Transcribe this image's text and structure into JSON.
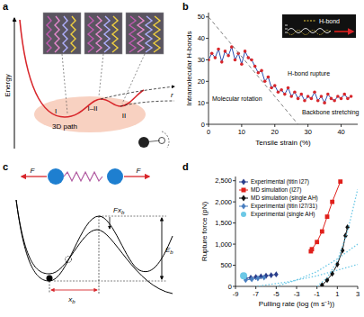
{
  "panels": [
    "a",
    "b",
    "c",
    "d"
  ],
  "panel_a": {
    "axis_label": "Energy",
    "states": [
      "I",
      "I–II",
      "II"
    ],
    "path_label": "3D path",
    "coordinate": "r"
  },
  "panel_c": {
    "forces": [
      "F",
      "F"
    ],
    "barrier_shift": {
      "text": "Fx",
      "sub": "b"
    },
    "distance": {
      "text": "x",
      "sub": "b"
    },
    "barrier": {
      "text": "E",
      "sub": "b"
    }
  },
  "chart_data": [
    {
      "type": "line",
      "x_label": "Tensile strain (%)",
      "y_label": "Intramolecular H-bonds",
      "xlim": [
        0,
        45
      ],
      "ylim": [
        0,
        52
      ],
      "xticks": [
        0,
        10,
        20,
        30,
        40
      ],
      "yticks": [
        0,
        10,
        20,
        30,
        40,
        50
      ],
      "grid": false,
      "annotations": [
        "Molecular rotation",
        "H-bond rupture",
        "Backbone stretching"
      ],
      "inset_label": "H-bond",
      "series": [
        {
          "color": "#d8262b",
          "marker": "circle",
          "x": [
            0,
            1,
            2,
            3,
            4,
            5,
            6,
            7,
            8,
            9,
            10,
            11,
            12,
            13,
            14,
            15,
            16,
            17,
            18,
            19,
            20,
            21,
            22,
            23,
            24,
            25,
            26,
            27,
            28,
            29,
            30,
            31,
            32,
            33,
            34,
            35,
            36,
            37,
            38,
            39,
            40,
            41,
            42,
            43
          ],
          "values": [
            30,
            33,
            31,
            35,
            29,
            34,
            32,
            36,
            30,
            33,
            28,
            34,
            31,
            30,
            27,
            24,
            25,
            20,
            22,
            17,
            18,
            15,
            16,
            14,
            17,
            13,
            15,
            12,
            14,
            11,
            13,
            12,
            15,
            11,
            13,
            10,
            14,
            12,
            11,
            13,
            12,
            14,
            12,
            13
          ]
        },
        {
          "type": "line",
          "color": "#808080",
          "line_style": "dashed",
          "x": [
            0,
            27
          ],
          "values": [
            50,
            0
          ]
        }
      ]
    },
    {
      "type": "line",
      "x_label": "Pulling rate (log (m s⁻¹))",
      "y_label": "Rupture force (pN)",
      "xlim": [
        -9,
        3
      ],
      "ylim": [
        0,
        2600
      ],
      "xticks": [
        -9,
        -7,
        -5,
        -3,
        -1,
        1,
        3
      ],
      "yticks": [
        0,
        500,
        {
          "value": 1000,
          "label": "1,000"
        },
        {
          "value": 1500,
          "label": "1,500"
        },
        {
          "value": 2000,
          "label": "2,000"
        },
        {
          "value": 2500,
          "label": "2,500"
        }
      ],
      "grid": false,
      "legend": "upper left",
      "series": [
        {
          "name": "Experimental (titin I27)",
          "color": "#2b3f8c",
          "marker": "diamond",
          "x": [
            -8,
            -7.5,
            -7,
            -6.5,
            -6,
            -5.5,
            -5
          ],
          "values": [
            190,
            205,
            220,
            235,
            250,
            265,
            285
          ]
        },
        {
          "name": "MD simulation (I27)",
          "color": "#e0201b",
          "marker": "square",
          "x": [
            -1.6,
            -1.5,
            -1,
            -0.5,
            0,
            0.5,
            1.3
          ],
          "values": [
            830,
            880,
            1050,
            1300,
            1650,
            2000,
            2480
          ]
        },
        {
          "name": "MD simulation (single AH)",
          "color": "#111111",
          "marker": "diamond",
          "x": [
            -0.5,
            0,
            0.5,
            1,
            1.5,
            1.8,
            2
          ],
          "values": [
            30,
            150,
            300,
            520,
            850,
            1200,
            1400
          ]
        },
        {
          "name": "Experimental (titin I27/31)",
          "color": "#4a7fc0",
          "marker": "diamond",
          "x": [
            -8,
            -7.4,
            -6.8,
            -6.2
          ],
          "values": [
            150,
            170,
            190,
            210
          ]
        },
        {
          "name": "Experimental (single AH)",
          "type": "scatter",
          "color": "#6cc8e6",
          "marker": "circle",
          "x": [
            -8.2
          ],
          "values": [
            250
          ]
        },
        {
          "type": "line",
          "color": "#6cc8e6",
          "line_style": "dotted",
          "x": [
            -1,
            0,
            1,
            2,
            3
          ],
          "values": [
            0,
            200,
            600,
            1300,
            2300
          ]
        },
        {
          "type": "line",
          "color": "#6cc8e6",
          "line_style": "dotted",
          "x": [
            -5,
            -3,
            -1,
            1,
            3
          ],
          "values": [
            0,
            150,
            350,
            650,
            1000
          ]
        },
        {
          "type": "line",
          "color": "#6cc8e6",
          "line_style": "dotted",
          "x": [
            -7,
            -4,
            -1,
            2,
            3
          ],
          "values": [
            0,
            100,
            250,
            450,
            520
          ]
        }
      ]
    }
  ]
}
